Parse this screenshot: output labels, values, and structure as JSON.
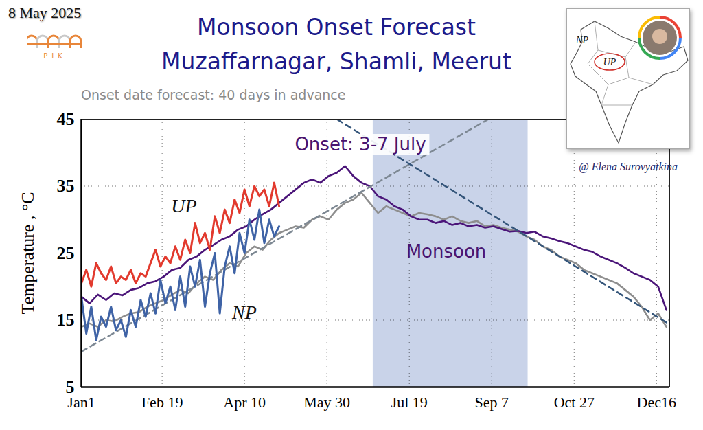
{
  "chart_data": {
    "type": "line",
    "title": "Monsoon Onset Forecast",
    "location": "Muzaffarnagar, Shamli, Meerut",
    "subtitle": "Onset date forecast: 40 days in advance",
    "date": "8 May 2025",
    "logo": "PIK",
    "credit": "@ Elena Surovyatkina",
    "inset_labels": [
      "NP",
      "UP"
    ],
    "ylabel": "Temperature , °C",
    "xlim": [
      1,
      358
    ],
    "xticks": [
      {
        "value": 1,
        "label": "Jan1"
      },
      {
        "value": 50,
        "label": "Feb 19"
      },
      {
        "value": 100,
        "label": "Apr 10"
      },
      {
        "value": 150,
        "label": "May 30"
      },
      {
        "value": 200,
        "label": "Jul 19"
      },
      {
        "value": 250,
        "label": "Sep 7"
      },
      {
        "value": 300,
        "label": "Oct 27"
      },
      {
        "value": 350,
        "label": "Dec16"
      }
    ],
    "ylim": [
      5,
      45
    ],
    "yticks": [
      5,
      15,
      25,
      35,
      45
    ],
    "grid": true,
    "band": {
      "start": 178,
      "end": 272,
      "color": "#c9d3e9"
    },
    "annotations": [
      {
        "text": "Onset: 3-7 July",
        "color": "#4a1470"
      },
      {
        "text": "Monsoon",
        "color": "#4a1470"
      }
    ],
    "series": [
      {
        "color": "#8e8e8e",
        "line_style": "solid",
        "x": [
          1,
          6,
          11,
          16,
          21,
          26,
          31,
          36,
          41,
          46,
          51,
          56,
          61,
          66,
          71,
          76,
          81,
          86,
          91,
          96,
          101,
          106,
          111,
          116,
          121,
          126,
          131,
          136,
          141,
          146,
          151,
          156,
          161,
          166,
          171,
          176,
          181,
          186,
          191,
          196,
          201,
          206,
          211,
          216,
          221,
          226,
          231,
          236,
          241,
          246,
          251,
          256,
          261,
          266,
          271,
          276,
          281,
          286,
          291,
          296,
          301,
          306,
          311,
          316,
          321,
          326,
          331,
          336,
          341,
          346,
          351,
          356
        ],
        "values": [
          14,
          14.5,
          14,
          15,
          14.8,
          15.5,
          16,
          16.2,
          17,
          17.5,
          18,
          18.8,
          19.5,
          19,
          20.5,
          21.5,
          21,
          22.5,
          23.5,
          23,
          25,
          26,
          25.5,
          27,
          28,
          28.5,
          29,
          28.8,
          30,
          30.5,
          30,
          31.5,
          32.5,
          33,
          34,
          32.5,
          31,
          32,
          31.5,
          31,
          30.5,
          31,
          30.8,
          30.5,
          30,
          30.5,
          29.8,
          29.5,
          29.8,
          29,
          29.2,
          28.8,
          28.5,
          28.2,
          27.5,
          27,
          26,
          25.5,
          24.5,
          24,
          23.5,
          22.5,
          22,
          21.5,
          21,
          20.5,
          19.5,
          18.5,
          17,
          15,
          16,
          14
        ]
      },
      {
        "color": "#4b1579",
        "line_style": "solid",
        "x": [
          1,
          6,
          11,
          16,
          21,
          26,
          31,
          36,
          41,
          46,
          51,
          56,
          61,
          66,
          71,
          76,
          81,
          86,
          91,
          96,
          101,
          106,
          111,
          116,
          121,
          126,
          131,
          136,
          141,
          146,
          151,
          156,
          161,
          166,
          171,
          176,
          181,
          186,
          191,
          196,
          201,
          206,
          211,
          216,
          221,
          226,
          231,
          236,
          241,
          246,
          251,
          256,
          261,
          266,
          271,
          276,
          281,
          286,
          291,
          296,
          301,
          306,
          311,
          316,
          321,
          326,
          331,
          336,
          341,
          346,
          351,
          356
        ],
        "values": [
          18.5,
          17.5,
          18.8,
          18,
          19,
          18.7,
          19.5,
          19.8,
          20.5,
          20.8,
          21.5,
          22.5,
          22.8,
          24,
          24.5,
          25.5,
          26.2,
          27,
          27.5,
          28.5,
          29,
          30,
          30.8,
          31.5,
          32.5,
          33.5,
          34.5,
          35.5,
          36,
          35.5,
          36.5,
          37,
          38,
          36.5,
          35.5,
          35,
          33.5,
          33,
          32,
          31.5,
          30.5,
          30,
          30,
          29.5,
          29.8,
          29.2,
          29.5,
          29,
          29.2,
          28.8,
          29,
          28.6,
          28.2,
          28.3,
          28,
          28.2,
          27.5,
          27.2,
          26.8,
          26.5,
          26,
          25.5,
          25.2,
          24.5,
          24,
          23.5,
          22.8,
          22,
          21.5,
          21,
          20,
          16.5
        ]
      },
      {
        "color": "#7d8893",
        "line_style": "dashed",
        "x": [
          1,
          248
        ],
        "values": [
          10.3,
          45
        ]
      },
      {
        "color": "#34557a",
        "line_style": "dashed",
        "x": [
          156,
          357
        ],
        "values": [
          45,
          14.5
        ]
      },
      {
        "name": "UP",
        "color": "#e23a2e",
        "line_style": "solid",
        "x": [
          1,
          4,
          7,
          10,
          13,
          16,
          19,
          22,
          25,
          28,
          31,
          34,
          37,
          40,
          43,
          46,
          49,
          52,
          55,
          58,
          61,
          64,
          67,
          70,
          73,
          76,
          79,
          82,
          85,
          88,
          91,
          94,
          97,
          100,
          103,
          106,
          109,
          112,
          115,
          118,
          121
        ],
        "values": [
          20.5,
          22.5,
          20,
          23.5,
          22,
          21,
          23,
          20.5,
          21.5,
          21,
          22.5,
          20.5,
          22,
          21.5,
          23.5,
          25.5,
          23,
          24.5,
          23.5,
          26,
          24,
          27,
          25,
          29.5,
          26.5,
          28,
          25.5,
          30.5,
          28,
          31.5,
          29.5,
          33,
          31,
          34.5,
          32,
          35,
          33.5,
          34.5,
          32,
          35.5,
          32
        ]
      },
      {
        "name": "NP",
        "color": "#3f63a6",
        "line_style": "solid",
        "x": [
          1,
          4,
          7,
          10,
          13,
          16,
          19,
          22,
          25,
          28,
          31,
          34,
          37,
          40,
          43,
          46,
          49,
          52,
          55,
          58,
          61,
          64,
          67,
          70,
          73,
          76,
          79,
          82,
          85,
          88,
          91,
          94,
          97,
          100,
          103,
          106,
          109,
          112,
          115,
          118,
          121
        ],
        "values": [
          18.5,
          13,
          17,
          12,
          15.5,
          14,
          17,
          13.5,
          15,
          12.5,
          16.5,
          14,
          18,
          15.5,
          19,
          16,
          21,
          17.5,
          20,
          16.5,
          21.5,
          17,
          23,
          20,
          24,
          17,
          22,
          25,
          16,
          23,
          26,
          22,
          28,
          25,
          30,
          27,
          31.5,
          26.5,
          30,
          27.5,
          29
        ]
      }
    ]
  }
}
